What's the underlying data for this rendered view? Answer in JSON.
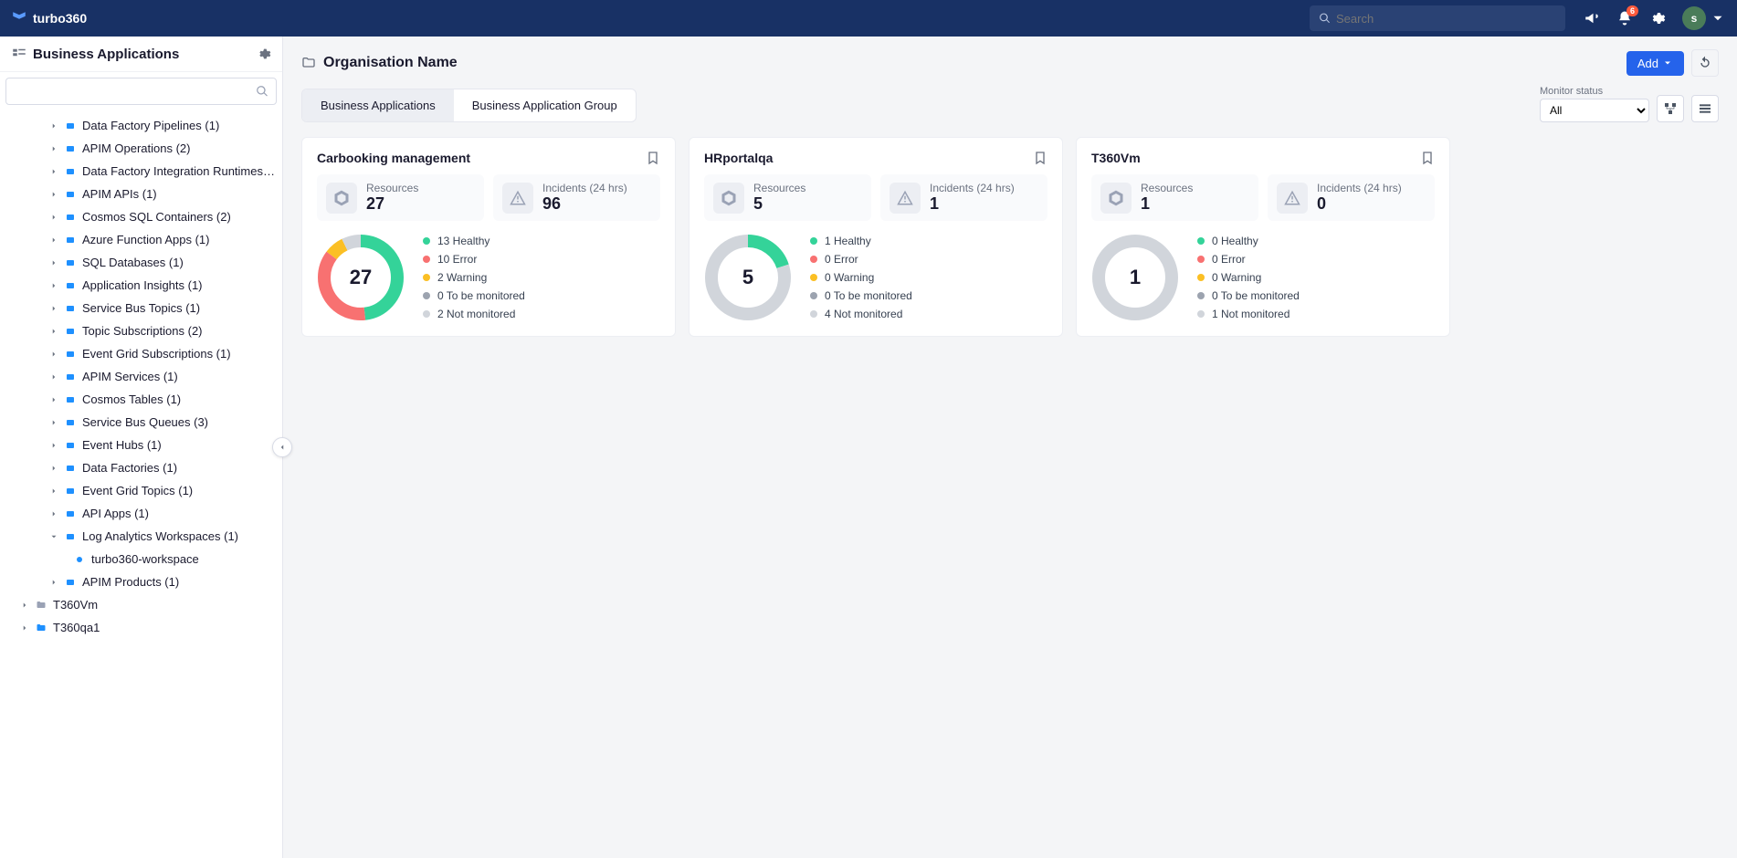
{
  "brand": "turbo360",
  "search_placeholder": "Search",
  "notification_badge": "6",
  "avatar_letter": "s",
  "sidebar": {
    "title": "Business Applications",
    "tree_level1": [
      {
        "label": "Data Factory Pipelines (1)",
        "icon": "#1e90ff"
      },
      {
        "label": "APIM Operations (2)",
        "icon": "#1e90ff"
      },
      {
        "label": "Data Factory Integration Runtimes (...",
        "icon": "#1e90ff"
      },
      {
        "label": "APIM APIs (1)",
        "icon": "#1e90ff"
      },
      {
        "label": "Cosmos SQL Containers (2)",
        "icon": "#1e90ff"
      },
      {
        "label": "Azure Function Apps (1)",
        "icon": "#1e90ff"
      },
      {
        "label": "SQL Databases (1)",
        "icon": "#1e90ff"
      },
      {
        "label": "Application Insights (1)",
        "icon": "#1e90ff"
      },
      {
        "label": "Service Bus Topics (1)",
        "icon": "#1e90ff"
      },
      {
        "label": "Topic Subscriptions (2)",
        "icon": "#1e90ff"
      },
      {
        "label": "Event Grid Subscriptions (1)",
        "icon": "#1e90ff"
      },
      {
        "label": "APIM Services (1)",
        "icon": "#1e90ff"
      },
      {
        "label": "Cosmos Tables (1)",
        "icon": "#1e90ff"
      },
      {
        "label": "Service Bus Queues (3)",
        "icon": "#1e90ff"
      },
      {
        "label": "Event Hubs (1)",
        "icon": "#1e90ff"
      },
      {
        "label": "Data Factories (1)",
        "icon": "#1e90ff"
      },
      {
        "label": "Event Grid Topics (1)",
        "icon": "#1e90ff"
      },
      {
        "label": "API Apps (1)",
        "icon": "#1e90ff"
      },
      {
        "label": "Log Analytics Workspaces (1)",
        "icon": "#1e90ff",
        "expanded": true,
        "child": "turbo360-workspace"
      },
      {
        "label": "APIM Products (1)",
        "icon": "#1e90ff"
      }
    ],
    "tree_level0": [
      {
        "label": "T360Vm",
        "icon_color": "#9aa2b5"
      },
      {
        "label": "T360qa1",
        "icon_color": "#1e90ff"
      }
    ]
  },
  "page": {
    "title": "Organisation Name",
    "add_label": "Add",
    "tabs": [
      {
        "label": "Business Applications",
        "active": true
      },
      {
        "label": "Business Application Group",
        "active": false
      }
    ],
    "filter_label": "Monitor status",
    "filter_value": "All"
  },
  "status_colors": {
    "healthy": "#34d399",
    "error": "#f87171",
    "warning": "#fbbf24",
    "tbm": "#9ca3af",
    "notmon": "#d1d5db"
  },
  "cards": [
    {
      "title": "Carbooking management",
      "resources": "27",
      "incidents": "96",
      "donut_segments": [
        {
          "color": "#34d399",
          "value": 13
        },
        {
          "color": "#f87171",
          "value": 10
        },
        {
          "color": "#fbbf24",
          "value": 2
        },
        {
          "color": "#d1d5db",
          "value": 2
        }
      ],
      "statuses": [
        {
          "color": "#34d399",
          "text": "13 Healthy"
        },
        {
          "color": "#f87171",
          "text": "10 Error"
        },
        {
          "color": "#fbbf24",
          "text": "2 Warning"
        },
        {
          "color": "#9ca3af",
          "text": "0 To be monitored"
        },
        {
          "color": "#d1d5db",
          "text": "2 Not monitored"
        }
      ]
    },
    {
      "title": "HRportalqa",
      "resources": "5",
      "incidents": "1",
      "donut_segments": [
        {
          "color": "#34d399",
          "value": 1
        },
        {
          "color": "#d1d5db",
          "value": 4
        }
      ],
      "statuses": [
        {
          "color": "#34d399",
          "text": "1 Healthy"
        },
        {
          "color": "#f87171",
          "text": "0 Error"
        },
        {
          "color": "#fbbf24",
          "text": "0 Warning"
        },
        {
          "color": "#9ca3af",
          "text": "0 To be monitored"
        },
        {
          "color": "#d1d5db",
          "text": "4 Not monitored"
        }
      ]
    },
    {
      "title": "T360Vm",
      "resources": "1",
      "incidents": "0",
      "donut_segments": [
        {
          "color": "#d1d5db",
          "value": 1
        }
      ],
      "statuses": [
        {
          "color": "#34d399",
          "text": "0 Healthy"
        },
        {
          "color": "#f87171",
          "text": "0 Error"
        },
        {
          "color": "#fbbf24",
          "text": "0 Warning"
        },
        {
          "color": "#9ca3af",
          "text": "0 To be monitored"
        },
        {
          "color": "#d1d5db",
          "text": "1 Not monitored"
        }
      ]
    }
  ],
  "labels": {
    "resources": "Resources",
    "incidents": "Incidents (24 hrs)"
  }
}
